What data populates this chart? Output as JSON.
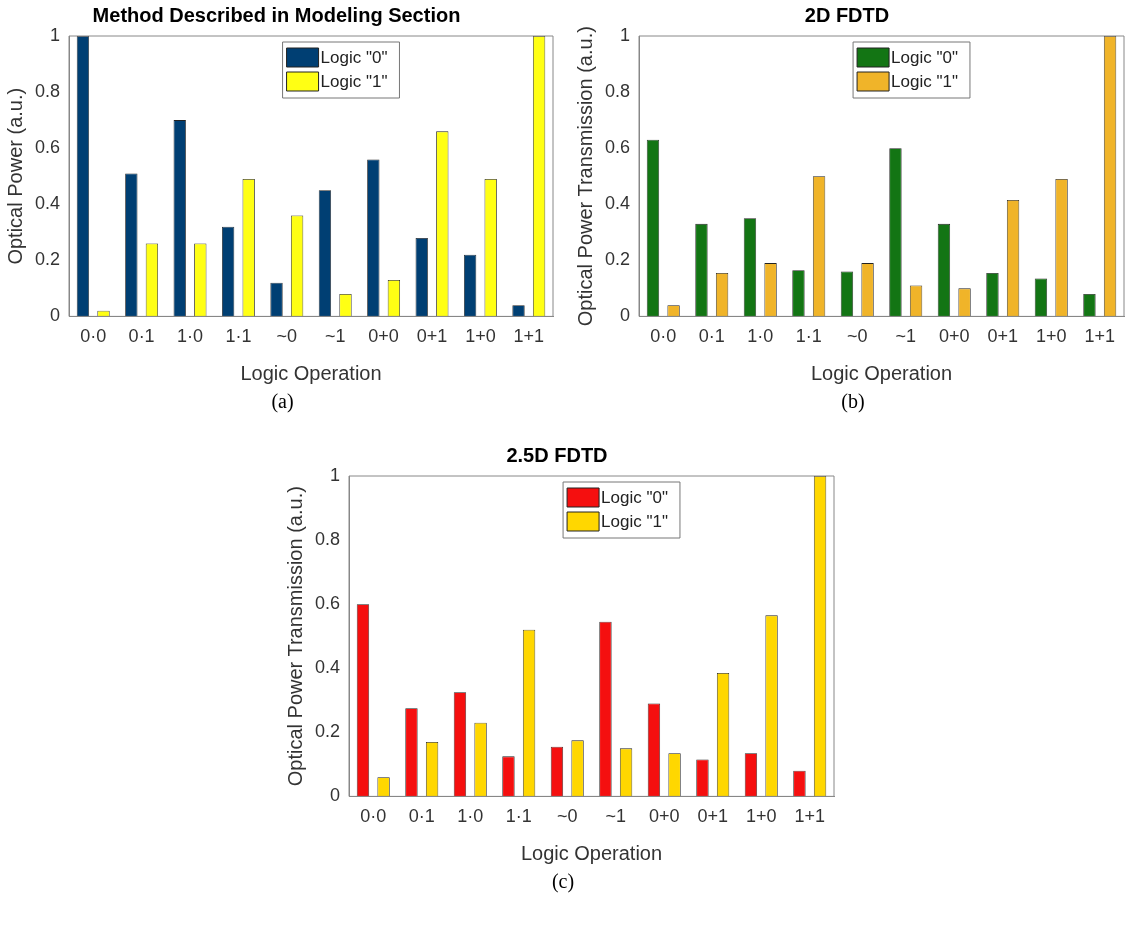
{
  "chart_data": [
    {
      "type": "bar",
      "title": "Method Described in Modeling Section",
      "xlabel": "Logic Operation",
      "ylabel": "Optical Power (a.u.)",
      "categories": [
        "0·0",
        "0·1",
        "1·0",
        "1·1",
        "~0",
        "~1",
        "0+0",
        "0+1",
        "1+0",
        "1+1"
      ],
      "series": [
        {
          "name": "Logic \"0\"",
          "color": "#003f73",
          "values": [
            1.0,
            0.51,
            0.7,
            0.32,
            0.12,
            0.45,
            0.56,
            0.28,
            0.22,
            0.04
          ]
        },
        {
          "name": "Logic \"1\"",
          "color": "#ffff14",
          "values": [
            0.02,
            0.26,
            0.26,
            0.49,
            0.36,
            0.08,
            0.13,
            0.66,
            0.49,
            1.0
          ]
        }
      ],
      "ylim": [
        0,
        1
      ],
      "yticks": [
        0,
        0.2,
        0.4,
        0.6,
        0.8,
        1
      ],
      "grid": false,
      "legend": "top",
      "annotations": [
        "(a)"
      ]
    },
    {
      "type": "bar",
      "title": "2D FDTD",
      "xlabel": "Logic Operation",
      "ylabel": "Optical Power Transmission (a.u.)",
      "categories": [
        "0·0",
        "0·1",
        "1·0",
        "1·1",
        "~0",
        "~1",
        "0+0",
        "0+1",
        "1+0",
        "1+1"
      ],
      "series": [
        {
          "name": "Logic \"0\"",
          "color": "#137514",
          "values": [
            0.63,
            0.33,
            0.35,
            0.165,
            0.16,
            0.6,
            0.33,
            0.155,
            0.135,
            0.08
          ]
        },
        {
          "name": "Logic \"1\"",
          "color": "#f0b429",
          "values": [
            0.04,
            0.155,
            0.19,
            0.5,
            0.19,
            0.11,
            0.1,
            0.415,
            0.49,
            1.0
          ]
        }
      ],
      "ylim": [
        0,
        1
      ],
      "yticks": [
        0,
        0.2,
        0.4,
        0.6,
        0.8,
        1
      ],
      "grid": false,
      "legend": "top",
      "annotations": [
        "(b)"
      ]
    },
    {
      "type": "bar",
      "title": "2.5D FDTD",
      "xlabel": "Logic Operation",
      "ylabel": "Optical Power Transmission (a.u.)",
      "categories": [
        "0·0",
        "0·1",
        "1·0",
        "1·1",
        "~0",
        "~1",
        "0+0",
        "0+1",
        "1+0",
        "1+1"
      ],
      "series": [
        {
          "name": "Logic \"0\"",
          "color": "#f50f0f",
          "values": [
            0.6,
            0.275,
            0.325,
            0.125,
            0.155,
            0.545,
            0.29,
            0.115,
            0.135,
            0.08
          ]
        },
        {
          "name": "Logic \"1\"",
          "color": "#ffd700",
          "values": [
            0.06,
            0.17,
            0.23,
            0.52,
            0.175,
            0.15,
            0.135,
            0.385,
            0.565,
            1.0
          ]
        }
      ],
      "ylim": [
        0,
        1
      ],
      "yticks": [
        0,
        0.2,
        0.4,
        0.6,
        0.8,
        1
      ],
      "grid": false,
      "legend": "top",
      "annotations": [
        "(c)"
      ]
    }
  ]
}
